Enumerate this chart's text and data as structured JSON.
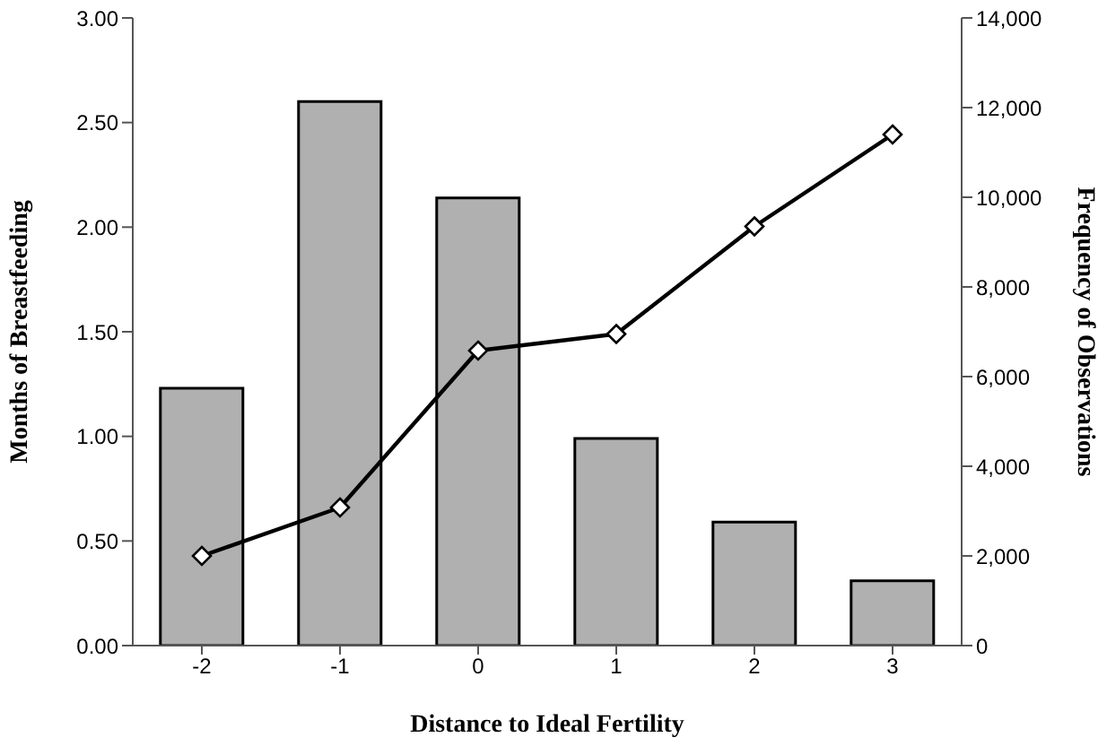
{
  "chart_data": {
    "type": "bar",
    "xlabel": "Distance to Ideal Fertility",
    "ylabel": "Months of Breastfeeding",
    "y2label": "Frequency of Observations",
    "categories": [
      "-2",
      "-1",
      "0",
      "1",
      "2",
      "3"
    ],
    "series": [
      {
        "color": "#b0b0b0",
        "values": [
          1.23,
          2.6,
          2.14,
          0.99,
          0.59,
          0.31
        ]
      },
      {
        "type": "line",
        "axis": "y2",
        "color": "#000000",
        "values": [
          2000,
          3080,
          6580,
          6950,
          9350,
          11400
        ]
      }
    ],
    "ylim": [
      0,
      3
    ],
    "yticks": [
      {
        "value": 0,
        "label": "0.00"
      },
      {
        "value": 0.5,
        "label": "0.50"
      },
      {
        "value": 1,
        "label": "1.00"
      },
      {
        "value": 1.5,
        "label": "1.50"
      },
      {
        "value": 2,
        "label": "2.00"
      },
      {
        "value": 2.5,
        "label": "2.50"
      },
      {
        "value": 3,
        "label": "3.00"
      }
    ],
    "y2lim": [
      0,
      14000
    ],
    "y2ticks": [
      0,
      {
        "value": 2000,
        "label": "2,000"
      },
      {
        "value": 4000,
        "label": "4,000"
      },
      {
        "value": 6000,
        "label": "6,000"
      },
      {
        "value": 8000,
        "label": "8,000"
      },
      {
        "value": 10000,
        "label": "10,000"
      },
      {
        "value": 12000,
        "label": "12,000"
      },
      {
        "value": 14000,
        "label": "14,000"
      }
    ],
    "grid": false,
    "legend": false,
    "marker": "diamond",
    "line_style": "solid"
  }
}
